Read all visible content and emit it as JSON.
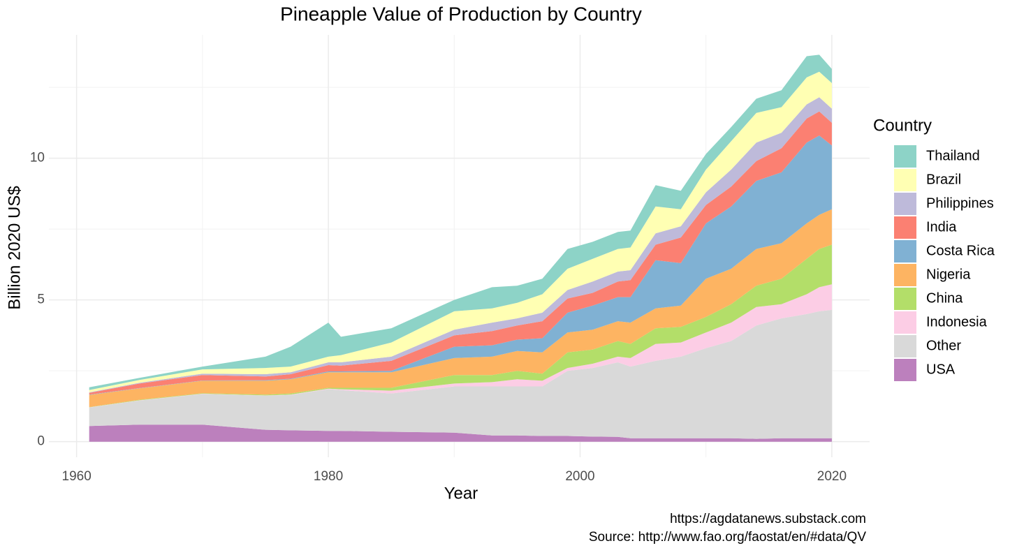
{
  "chart_data": {
    "type": "stacked_area",
    "title": "Pineapple Value of Production by Country",
    "x_label": "Year",
    "y_label": "Billion 2020 US$",
    "legend_title": "Country",
    "captions": [
      "https://agdatanews.substack.com",
      "Source: http://www.fao.org/faostat/en/#data/QV"
    ],
    "x": [
      1961,
      1965,
      1970,
      1975,
      1977,
      1980,
      1981,
      1985,
      1990,
      1993,
      1995,
      1997,
      1999,
      2001,
      2003,
      2004,
      2006,
      2008,
      2010,
      2012,
      2014,
      2016,
      2018,
      2019,
      2020
    ],
    "series": [
      {
        "name": "Thailand",
        "color": "#8dd3c7",
        "values": [
          0.1,
          0.07,
          0.1,
          0.4,
          0.7,
          1.2,
          0.65,
          0.5,
          0.4,
          0.75,
          0.6,
          0.55,
          0.7,
          0.6,
          0.6,
          0.6,
          0.75,
          0.65,
          0.55,
          0.5,
          0.5,
          0.6,
          0.75,
          0.6,
          0.5
        ]
      },
      {
        "name": "Brazil",
        "color": "#ffffb3",
        "values": [
          0.08,
          0.1,
          0.15,
          0.22,
          0.2,
          0.2,
          0.25,
          0.5,
          0.65,
          0.5,
          0.55,
          0.65,
          0.75,
          0.8,
          0.8,
          0.8,
          0.95,
          0.6,
          0.8,
          1.0,
          1.05,
          0.9,
          0.95,
          0.9,
          0.9
        ]
      },
      {
        "name": "Philippines",
        "color": "#bebada",
        "values": [
          0.02,
          0.03,
          0.05,
          0.08,
          0.07,
          0.1,
          0.12,
          0.15,
          0.2,
          0.3,
          0.25,
          0.3,
          0.3,
          0.4,
          0.35,
          0.35,
          0.4,
          0.4,
          0.45,
          0.6,
          0.65,
          0.55,
          0.5,
          0.5,
          0.5
        ]
      },
      {
        "name": "India",
        "color": "#fb8072",
        "values": [
          0.06,
          0.16,
          0.19,
          0.13,
          0.16,
          0.22,
          0.2,
          0.35,
          0.4,
          0.5,
          0.5,
          0.6,
          0.5,
          0.45,
          0.55,
          0.6,
          0.55,
          0.9,
          0.65,
          0.7,
          0.7,
          0.85,
          0.85,
          0.85,
          0.8
        ]
      },
      {
        "name": "Costa Rica",
        "color": "#80b1d3",
        "values": [
          0.01,
          0.01,
          0.01,
          0.02,
          0.02,
          0.03,
          0.03,
          0.05,
          0.4,
          0.4,
          0.4,
          0.5,
          0.7,
          0.85,
          0.85,
          0.9,
          1.7,
          1.5,
          1.95,
          2.2,
          2.4,
          2.5,
          2.85,
          2.8,
          2.25
        ]
      },
      {
        "name": "Nigeria",
        "color": "#fdb462",
        "values": [
          0.43,
          0.4,
          0.44,
          0.49,
          0.5,
          0.55,
          0.55,
          0.55,
          0.6,
          0.65,
          0.7,
          0.75,
          0.7,
          0.7,
          0.7,
          0.75,
          0.7,
          0.75,
          1.35,
          1.25,
          1.3,
          1.25,
          1.25,
          1.2,
          1.25
        ]
      },
      {
        "name": "China",
        "color": "#b3de69",
        "values": [
          0.01,
          0.02,
          0.02,
          0.03,
          0.04,
          0.03,
          0.05,
          0.1,
          0.3,
          0.25,
          0.3,
          0.25,
          0.55,
          0.5,
          0.55,
          0.5,
          0.55,
          0.55,
          0.55,
          0.65,
          0.75,
          0.9,
          1.25,
          1.35,
          1.4
        ]
      },
      {
        "name": "Indonesia",
        "color": "#fccde5",
        "values": [
          0.01,
          0.01,
          0.01,
          0.01,
          0.01,
          0.02,
          0.03,
          0.1,
          0.1,
          0.15,
          0.25,
          0.2,
          0.1,
          0.15,
          0.2,
          0.3,
          0.6,
          0.5,
          0.55,
          0.65,
          0.65,
          0.5,
          0.7,
          0.85,
          0.9
        ]
      },
      {
        "name": "Other",
        "color": "#d9d9d9",
        "values": [
          0.65,
          0.85,
          1.08,
          1.2,
          1.25,
          1.47,
          1.44,
          1.35,
          1.63,
          1.73,
          1.73,
          1.75,
          2.3,
          2.42,
          2.63,
          2.53,
          2.73,
          2.88,
          3.18,
          3.43,
          4.0,
          4.23,
          4.38,
          4.48,
          4.53
        ]
      },
      {
        "name": "USA",
        "color": "#bc80bd",
        "values": [
          0.55,
          0.6,
          0.6,
          0.42,
          0.4,
          0.38,
          0.38,
          0.35,
          0.32,
          0.22,
          0.22,
          0.2,
          0.2,
          0.18,
          0.17,
          0.12,
          0.12,
          0.12,
          0.12,
          0.12,
          0.1,
          0.12,
          0.12,
          0.12,
          0.12
        ]
      }
    ],
    "xlim": [
      1957.8,
      2023
    ],
    "xticks": [
      1960,
      1980,
      2000,
      2020
    ],
    "xminor": [
      1970,
      1990,
      2010
    ],
    "ylim": [
      -0.55,
      14.35
    ],
    "yticks": [
      0,
      5,
      10
    ],
    "yminor": [
      2.5,
      7.5,
      12.5
    ],
    "grid": true,
    "legend": "right"
  }
}
